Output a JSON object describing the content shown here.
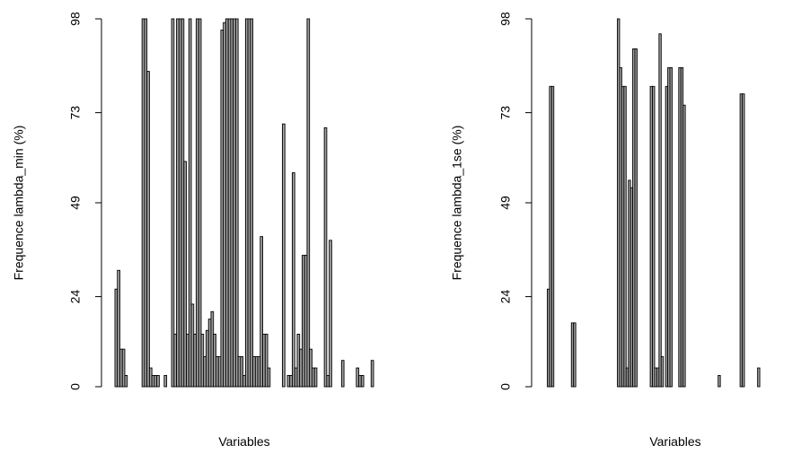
{
  "chart_data": [
    {
      "type": "bar",
      "ylabel": "Frequence lambda_min (%)",
      "xlabel": "Variables",
      "yticks": [
        0,
        24,
        49,
        73,
        98
      ],
      "ylim": [
        0,
        98
      ],
      "values": [
        26,
        31,
        10,
        10,
        3,
        0,
        0,
        0,
        0,
        0,
        0,
        98,
        98,
        84,
        5,
        3,
        3,
        3,
        0,
        0,
        3,
        0,
        0,
        100,
        14,
        100,
        100,
        100,
        60,
        14,
        98,
        22,
        14,
        98,
        100,
        14,
        8,
        15,
        18,
        20,
        14,
        8,
        8,
        95,
        97,
        100,
        100,
        100,
        98,
        98,
        8,
        8,
        3,
        100,
        98,
        98,
        8,
        8,
        8,
        40,
        14,
        14,
        5,
        0,
        0,
        0,
        0,
        0,
        70,
        0,
        3,
        3,
        57,
        5,
        14,
        10,
        35,
        35,
        100,
        10,
        5,
        5,
        0,
        0,
        0,
        69,
        3,
        39,
        0,
        0,
        0,
        0,
        7,
        0,
        0,
        0,
        0,
        0,
        5,
        3,
        3,
        0,
        0,
        0,
        7
      ],
      "grid": false,
      "legend": "none"
    },
    {
      "type": "bar",
      "ylabel": "Frequence lambda_1se (%)",
      "xlabel": "Variables",
      "yticks": [
        0,
        24,
        49,
        73,
        98
      ],
      "ylim": [
        0,
        98
      ],
      "values": [
        0,
        26,
        80,
        80,
        0,
        0,
        0,
        0,
        0,
        0,
        0,
        0,
        17,
        17,
        0,
        0,
        0,
        0,
        0,
        0,
        0,
        0,
        0,
        0,
        0,
        0,
        0,
        0,
        0,
        0,
        0,
        0,
        0,
        100,
        85,
        80,
        80,
        5,
        55,
        53,
        90,
        90,
        0,
        0,
        0,
        0,
        0,
        0,
        80,
        80,
        5,
        5,
        94,
        8,
        0,
        80,
        85,
        85,
        0,
        0,
        0,
        85,
        85,
        75,
        0,
        0,
        0,
        0,
        0,
        0,
        0,
        0,
        0,
        0,
        0,
        0,
        0,
        0,
        0,
        3,
        0,
        0,
        0,
        0,
        0,
        0,
        0,
        0,
        0,
        78,
        78,
        0,
        0,
        0,
        0,
        0,
        0,
        5,
        0,
        0,
        0,
        0,
        0,
        0,
        0,
        0,
        0,
        0,
        0,
        0,
        0,
        0,
        0,
        0,
        0,
        0
      ],
      "grid": false,
      "legend": "none"
    }
  ]
}
